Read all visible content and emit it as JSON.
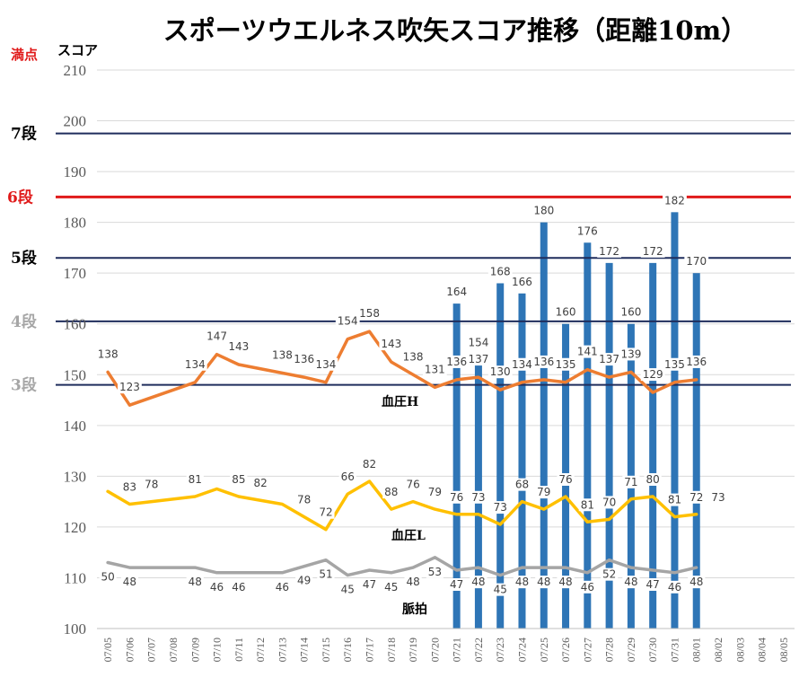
{
  "title": "スポーツウエルネス吹矢スコア推移（距離10m）",
  "corner_labels": {
    "max_label": "満点",
    "axis_label": "スコア"
  },
  "colors": {
    "bars": "#2E75B6",
    "bp_high": "#ED7D31",
    "bp_low": "#FFC000",
    "pulse": "#A5A5A5",
    "rank_line": "#1F2D5C",
    "rank6": "#E01A1A",
    "rank_gray": "#A6A6A6",
    "grid": "#D9D9D9"
  },
  "chart_data": {
    "type": "bar+line",
    "title": "スポーツウエルネス吹矢スコア推移（距離10m）",
    "ylabel": "スコア",
    "ylim": [
      100,
      210
    ],
    "yticks": [
      100,
      110,
      120,
      130,
      140,
      150,
      160,
      170,
      180,
      190,
      200,
      210
    ],
    "grid": true,
    "categories": [
      "07/05",
      "07/06",
      "07/07",
      "07/08",
      "07/09",
      "07/10",
      "07/11",
      "07/12",
      "07/13",
      "07/14",
      "07/15",
      "07/16",
      "07/17",
      "07/18",
      "07/19",
      "07/20",
      "07/21",
      "07/22",
      "07/23",
      "07/24",
      "07/25",
      "07/26",
      "07/27",
      "07/28",
      "07/29",
      "07/30",
      "07/31",
      "08/01",
      "08/02",
      "08/03",
      "08/04",
      "08/05"
    ],
    "bars": {
      "name": "スコア",
      "values": [
        null,
        null,
        null,
        null,
        null,
        null,
        null,
        null,
        null,
        null,
        null,
        null,
        null,
        null,
        null,
        null,
        164,
        154,
        168,
        166,
        180,
        160,
        176,
        172,
        160,
        172,
        182,
        170,
        null,
        null,
        null,
        null
      ]
    },
    "series": [
      {
        "name": "血圧H",
        "labels": [
          138,
          123,
          null,
          null,
          134,
          147,
          143,
          null,
          138,
          136,
          134,
          154,
          158,
          143,
          138,
          131,
          136,
          137,
          130,
          134,
          136,
          135,
          141,
          137,
          139,
          129,
          135,
          136,
          null,
          null,
          null,
          null
        ],
        "points": [
          [
            "07/05",
            150.5
          ],
          [
            "07/06",
            144
          ],
          [
            "07/09",
            148.5
          ],
          [
            "07/10",
            154
          ],
          [
            "07/11",
            152
          ],
          [
            "07/14",
            149.5
          ],
          [
            "07/15",
            148.5
          ],
          [
            "07/16",
            157
          ],
          [
            "07/17",
            158.5
          ],
          [
            "07/18",
            152.5
          ],
          [
            "07/19",
            150
          ],
          [
            "07/20",
            147.5
          ],
          [
            "07/21",
            149
          ],
          [
            "07/22",
            149.5
          ],
          [
            "07/23",
            147
          ],
          [
            "07/24",
            148.5
          ],
          [
            "07/25",
            149
          ],
          [
            "07/26",
            148.5
          ],
          [
            "07/27",
            151
          ],
          [
            "07/28",
            149.5
          ],
          [
            "07/29",
            150.5
          ],
          [
            "07/30",
            146.5
          ],
          [
            "07/31",
            148.5
          ],
          [
            "08/01",
            149
          ]
        ]
      },
      {
        "name": "血圧L",
        "labels": [
          null,
          83,
          78,
          null,
          81,
          null,
          85,
          82,
          null,
          78,
          72,
          66,
          82,
          88,
          76,
          79,
          76,
          73,
          73,
          68,
          79,
          76,
          81,
          70,
          71,
          80,
          81,
          72,
          73,
          null,
          null,
          null
        ],
        "points": [
          [
            "07/05",
            127
          ],
          [
            "07/06",
            124.5
          ],
          [
            "07/09",
            126
          ],
          [
            "07/10",
            127.5
          ],
          [
            "07/11",
            126
          ],
          [
            "07/13",
            124.5
          ],
          [
            "07/15",
            119.5
          ],
          [
            "07/16",
            126.5
          ],
          [
            "07/17",
            129
          ],
          [
            "07/18",
            123.5
          ],
          [
            "07/19",
            125
          ],
          [
            "07/20",
            123.5
          ],
          [
            "07/21",
            122.5
          ],
          [
            "07/22",
            122.5
          ],
          [
            "07/23",
            120.5
          ],
          [
            "07/24",
            125
          ],
          [
            "07/25",
            123.5
          ],
          [
            "07/26",
            126
          ],
          [
            "07/27",
            121
          ],
          [
            "07/28",
            121.5
          ],
          [
            "07/29",
            125.5
          ],
          [
            "07/30",
            126
          ],
          [
            "07/31",
            122
          ],
          [
            "08/01",
            122.5
          ]
        ]
      },
      {
        "name": "脈拍",
        "labels": [
          50,
          48,
          null,
          null,
          48,
          46,
          46,
          null,
          46,
          49,
          51,
          45,
          47,
          45,
          48,
          53,
          47,
          48,
          45,
          48,
          48,
          48,
          46,
          52,
          48,
          47,
          46,
          48,
          null,
          null,
          null,
          null
        ],
        "points": [
          [
            "07/05",
            113
          ],
          [
            "07/06",
            112
          ],
          [
            "07/09",
            112
          ],
          [
            "07/10",
            111
          ],
          [
            "07/13",
            111
          ],
          [
            "07/15",
            113.5
          ],
          [
            "07/16",
            110.5
          ],
          [
            "07/17",
            111.5
          ],
          [
            "07/18",
            111
          ],
          [
            "07/19",
            112
          ],
          [
            "07/20",
            114
          ],
          [
            "07/21",
            111.5
          ],
          [
            "07/22",
            112
          ],
          [
            "07/23",
            110.5
          ],
          [
            "07/24",
            112
          ],
          [
            "07/25",
            112
          ],
          [
            "07/26",
            112
          ],
          [
            "07/27",
            111
          ],
          [
            "07/28",
            113.5
          ],
          [
            "07/29",
            112
          ],
          [
            "07/30",
            111.5
          ],
          [
            "07/31",
            111
          ],
          [
            "08/01",
            112
          ]
        ]
      }
    ],
    "rank_lines": [
      {
        "label": "7段",
        "value": 197.5
      },
      {
        "label": "6段",
        "value": 185
      },
      {
        "label": "5段",
        "value": 173
      },
      {
        "label": "4段",
        "value": 160.5
      },
      {
        "label": "3段",
        "value": 148
      }
    ]
  }
}
